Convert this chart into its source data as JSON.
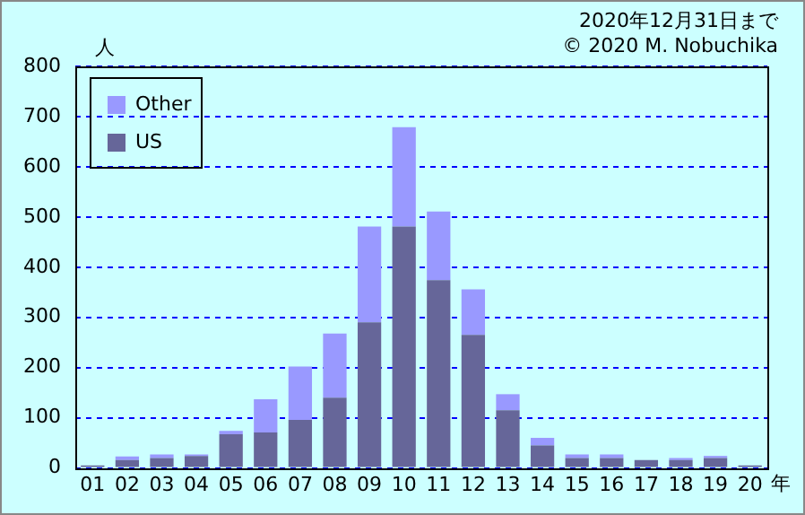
{
  "chart_data": {
    "type": "bar",
    "stacked": true,
    "xlabel": "年",
    "ylabel": "人",
    "annotations": [
      "2020年12月31日まで",
      "© 2020 M. Nobuchika"
    ],
    "categories": [
      "01",
      "02",
      "03",
      "04",
      "05",
      "06",
      "07",
      "08",
      "09",
      "10",
      "11",
      "12",
      "13",
      "14",
      "15",
      "16",
      "17",
      "18",
      "19",
      "20"
    ],
    "series": [
      {
        "name": "US",
        "color": "#666699",
        "values": [
          5,
          16,
          20,
          24,
          67,
          71,
          96,
          140,
          290,
          481,
          374,
          265,
          115,
          45,
          20,
          20,
          16,
          16,
          20,
          5
        ]
      },
      {
        "name": "Other",
        "color": "#9999ff",
        "values": [
          0,
          7,
          7,
          3,
          7,
          66,
          106,
          128,
          191,
          198,
          137,
          91,
          32,
          15,
          7,
          7,
          0,
          4,
          4,
          0
        ]
      }
    ],
    "ylim": [
      0,
      800
    ],
    "yticks": [
      0,
      100,
      200,
      300,
      400,
      500,
      600,
      700,
      800
    ],
    "grid": "y",
    "legend": "top left"
  }
}
